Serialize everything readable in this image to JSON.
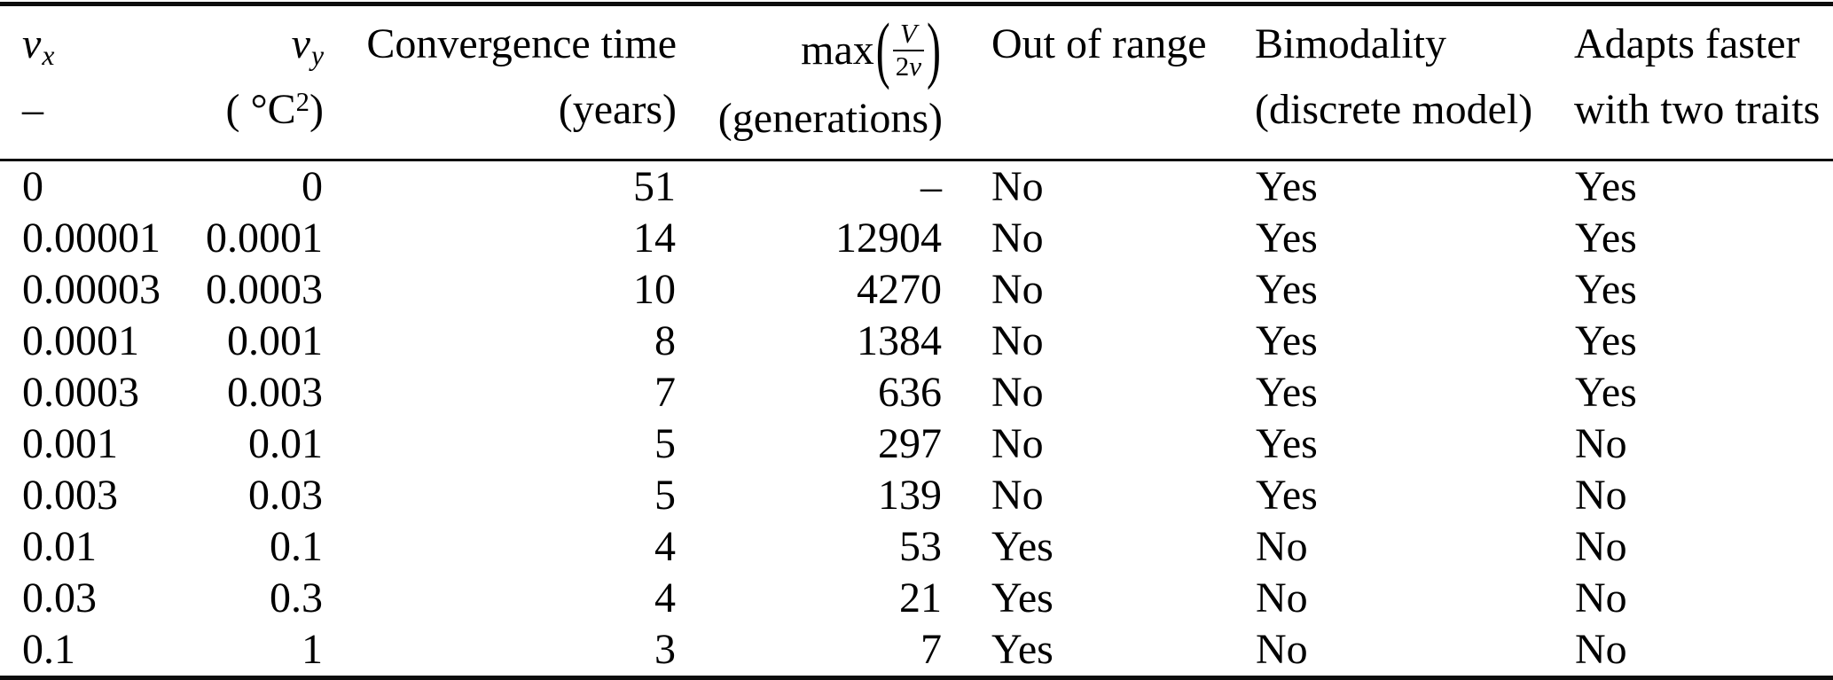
{
  "header": {
    "nu_x": {
      "symbol": "ν",
      "sub": "x",
      "line2": "–"
    },
    "nu_y": {
      "symbol": "ν",
      "sub": "y",
      "unit_open": "( ",
      "unit_base": "°C",
      "unit_sup": "2",
      "unit_close": ")"
    },
    "convergence": {
      "line1": "Convergence time",
      "line2": "(years)"
    },
    "max": {
      "label": "max",
      "open_paren": "(",
      "numerator": "V",
      "den_coeff": "2",
      "den_symbol": "ν",
      "close_paren": ")",
      "line2": "(generations)"
    },
    "out_of_range": {
      "line1": "Out of range"
    },
    "bimodality": {
      "line1": "Bimodality",
      "line2": "(discrete model)"
    },
    "adapts": {
      "line1": "Adapts faster",
      "line2": "with two traits"
    }
  },
  "table": {
    "rows": [
      [
        "0",
        "0",
        "51",
        "–",
        "No",
        "Yes",
        "Yes"
      ],
      [
        "0.00001",
        "0.0001",
        "14",
        "12904",
        "No",
        "Yes",
        "Yes"
      ],
      [
        "0.00003",
        "0.0003",
        "10",
        "4270",
        "No",
        "Yes",
        "Yes"
      ],
      [
        "0.0001",
        "0.001",
        "8",
        "1384",
        "No",
        "Yes",
        "Yes"
      ],
      [
        "0.0003",
        "0.003",
        "7",
        "636",
        "No",
        "Yes",
        "Yes"
      ],
      [
        "0.001",
        "0.01",
        "5",
        "297",
        "No",
        "Yes",
        "No"
      ],
      [
        "0.003",
        "0.03",
        "5",
        "139",
        "No",
        "Yes",
        "No"
      ],
      [
        "0.01",
        "0.1",
        "4",
        "53",
        "Yes",
        "No",
        "No"
      ],
      [
        "0.03",
        "0.3",
        "4",
        "21",
        "Yes",
        "No",
        "No"
      ],
      [
        "0.1",
        "1",
        "3",
        "7",
        "Yes",
        "No",
        "No"
      ]
    ]
  }
}
